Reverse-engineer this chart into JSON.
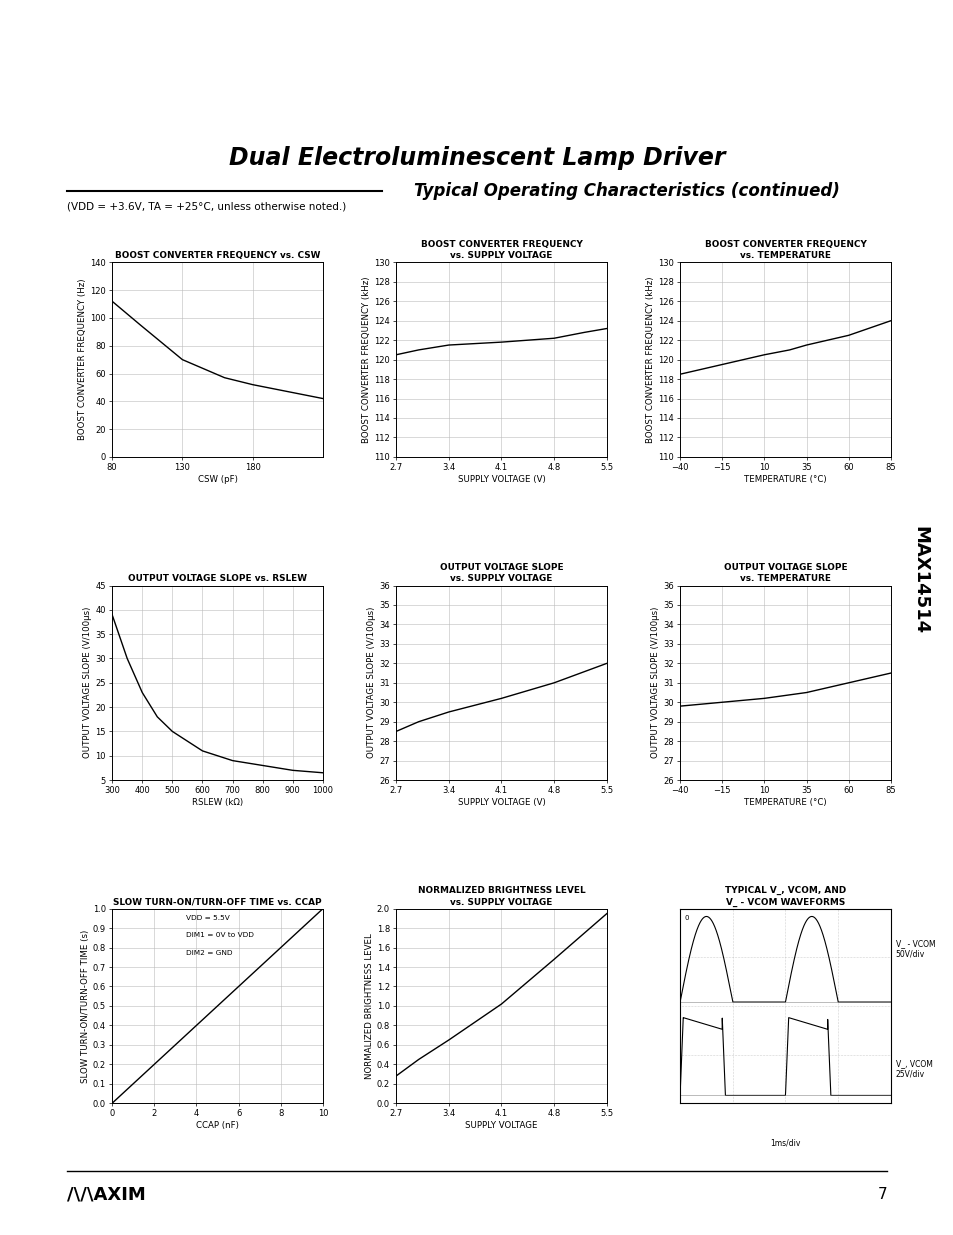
{
  "title": "Dual Electroluminescent Lamp Driver",
  "subtitle": "Typical Operating Characteristics (continued)",
  "page_number": "7",
  "bg_color": "#ffffff",
  "chart1": {
    "title": "BOOST CONVERTER FREQUENCY vs. CSW",
    "xlabel": "CSW (pF)",
    "ylabel": "BOOST CONVERTER FREQUENCY (Hz)",
    "xlim": [
      80,
      230
    ],
    "ylim": [
      0,
      140
    ],
    "xticks": [
      80,
      130,
      180
    ],
    "yticks": [
      0,
      20,
      40,
      60,
      80,
      100,
      120,
      140
    ],
    "x": [
      80,
      100,
      130,
      160,
      180,
      200,
      220,
      230
    ],
    "y": [
      112,
      95,
      70,
      57,
      52,
      48,
      44,
      42
    ]
  },
  "chart2": {
    "title_line1": "BOOST CONVERTER FREQUENCY",
    "title_line2": "vs. SUPPLY VOLTAGE",
    "xlabel": "SUPPLY VOLTAGE (V)",
    "ylabel": "BOOST CONVERTER FREQUENCY (kHz)",
    "xlim": [
      2.7,
      5.5
    ],
    "ylim": [
      110,
      130
    ],
    "xticks": [
      2.7,
      3.4,
      4.1,
      4.8,
      5.5
    ],
    "yticks": [
      110,
      112,
      114,
      116,
      118,
      120,
      122,
      124,
      126,
      128,
      130
    ],
    "x": [
      2.7,
      3.0,
      3.4,
      4.1,
      4.8,
      5.2,
      5.5
    ],
    "y": [
      120.5,
      121.0,
      121.5,
      121.8,
      122.2,
      122.8,
      123.2
    ]
  },
  "chart3": {
    "title_line1": "BOOST CONVERTER FREQUENCY",
    "title_line2": "vs. TEMPERATURE",
    "xlabel": "TEMPERATURE (°C)",
    "ylabel": "BOOST CONVERTER FREQUENCY (kHz)",
    "xlim": [
      -40,
      85
    ],
    "ylim": [
      110,
      130
    ],
    "xticks": [
      -40,
      -15,
      10,
      35,
      60,
      85
    ],
    "yticks": [
      110,
      112,
      114,
      116,
      118,
      120,
      122,
      124,
      126,
      128,
      130
    ],
    "x": [
      -40,
      -15,
      10,
      25,
      35,
      60,
      85
    ],
    "y": [
      118.5,
      119.5,
      120.5,
      121.0,
      121.5,
      122.5,
      124.0
    ]
  },
  "chart4": {
    "title": "OUTPUT VOLTAGE SLOPE vs. RSLEW",
    "xlabel": "RSLEW (kΩ)",
    "ylabel": "OUTPUT VOLTAGE SLOPE (V/100μs)",
    "xlim": [
      300,
      1000
    ],
    "ylim": [
      5,
      45
    ],
    "xticks": [
      300,
      400,
      500,
      600,
      700,
      800,
      900,
      1000
    ],
    "yticks": [
      5,
      10,
      15,
      20,
      25,
      30,
      35,
      40,
      45
    ],
    "x": [
      300,
      350,
      400,
      450,
      500,
      600,
      700,
      800,
      900,
      1000
    ],
    "y": [
      39,
      30,
      23,
      18,
      15,
      11,
      9,
      8,
      7,
      6.5
    ]
  },
  "chart5": {
    "title_line1": "OUTPUT VOLTAGE SLOPE",
    "title_line2": "vs. SUPPLY VOLTAGE",
    "xlabel": "SUPPLY VOLTAGE (V)",
    "ylabel": "OUTPUT VOLTAGE SLOPE (V/100μs)",
    "xlim": [
      2.7,
      5.5
    ],
    "ylim": [
      26,
      36
    ],
    "xticks": [
      2.7,
      3.4,
      4.1,
      4.8,
      5.5
    ],
    "yticks": [
      26,
      27,
      28,
      29,
      30,
      31,
      32,
      33,
      34,
      35,
      36
    ],
    "x": [
      2.7,
      3.0,
      3.4,
      4.1,
      4.8,
      5.5
    ],
    "y": [
      28.5,
      29.0,
      29.5,
      30.2,
      31.0,
      32.0
    ]
  },
  "chart6": {
    "title_line1": "OUTPUT VOLTAGE SLOPE",
    "title_line2": "vs. TEMPERATURE",
    "xlabel": "TEMPERATURE (°C)",
    "ylabel": "OUTPUT VOLTAGE SLOPE (V/100μs)",
    "xlim": [
      -40,
      85
    ],
    "ylim": [
      26,
      36
    ],
    "xticks": [
      -40,
      -15,
      10,
      35,
      60,
      85
    ],
    "yticks": [
      26,
      27,
      28,
      29,
      30,
      31,
      32,
      33,
      34,
      35,
      36
    ],
    "x": [
      -40,
      -15,
      10,
      35,
      60,
      85
    ],
    "y": [
      29.8,
      30.0,
      30.2,
      30.5,
      31.0,
      31.5
    ]
  },
  "chart7": {
    "title": "SLOW TURN-ON/TURN-OFF TIME vs. CCAP",
    "xlabel": "CCAP (nF)",
    "ylabel": "SLOW TURN-ON/TURN-OFF TIME (s)",
    "xlim": [
      0,
      10
    ],
    "ylim": [
      0,
      1
    ],
    "xticks": [
      0,
      2,
      4,
      6,
      8,
      10
    ],
    "yticks": [
      0,
      0.1,
      0.2,
      0.3,
      0.4,
      0.5,
      0.6,
      0.7,
      0.8,
      0.9,
      1.0
    ],
    "x": [
      0,
      1,
      2,
      3,
      4,
      5,
      6,
      7,
      8,
      9,
      10
    ],
    "y": [
      0,
      0.1,
      0.2,
      0.3,
      0.4,
      0.5,
      0.6,
      0.7,
      0.8,
      0.9,
      1.0
    ],
    "ann1": "VDD = 5.5V",
    "ann2": "DIM1 = 0V to VDD",
    "ann3": "DIM2 = GND"
  },
  "chart8": {
    "title_line1": "NORMALIZED BRIGHTNESS LEVEL",
    "title_line2": "vs. SUPPLY VOLTAGE",
    "xlabel": "SUPPLY VOLTAGE",
    "ylabel": "NORMALIZED BRIGHTNESS LEVEL",
    "xlim": [
      2.7,
      5.5
    ],
    "ylim": [
      0,
      2.0
    ],
    "xticks": [
      2.7,
      3.4,
      4.1,
      4.8,
      5.5
    ],
    "yticks": [
      0,
      0.2,
      0.4,
      0.6,
      0.8,
      1.0,
      1.2,
      1.4,
      1.6,
      1.8,
      2.0
    ],
    "x": [
      2.7,
      3.0,
      3.4,
      4.1,
      4.8,
      5.5
    ],
    "y": [
      0.28,
      0.45,
      0.65,
      1.02,
      1.48,
      1.95
    ]
  },
  "chart9": {
    "title_line1": "TYPICAL V_, VCOM, AND",
    "title_line2": "V_ - VCOM WAVEFORMS",
    "ann_top": "V_ - VCOM\n50V/div",
    "ann_bot": "V_, VCOM\n25V/div",
    "xlabel": "1ms/div"
  }
}
